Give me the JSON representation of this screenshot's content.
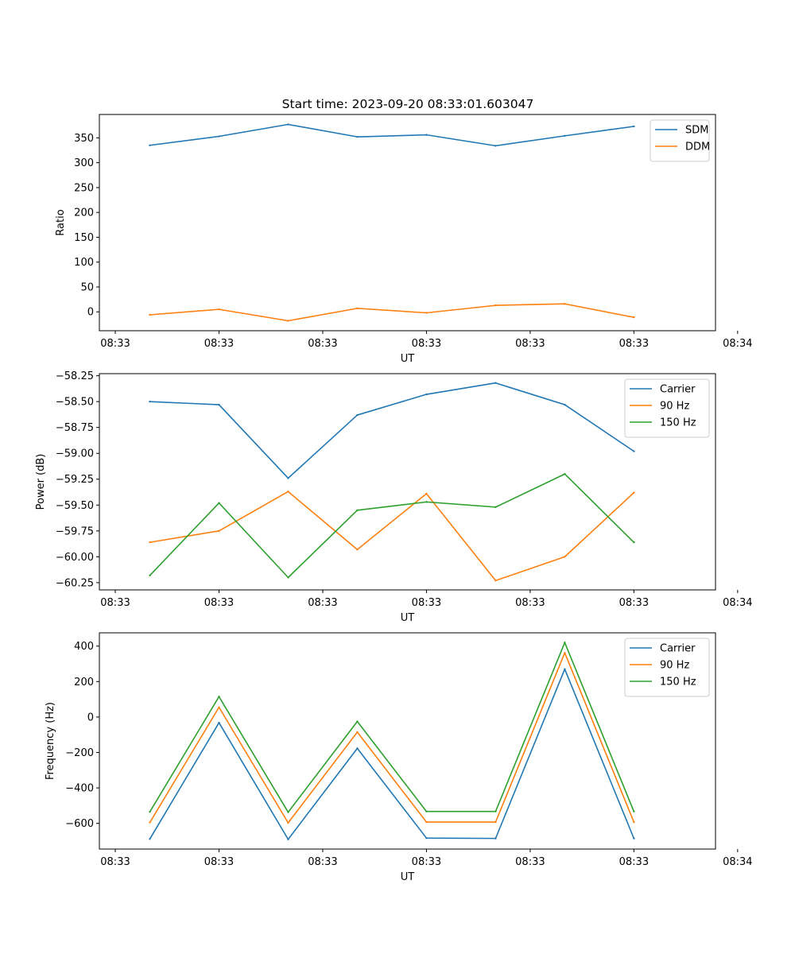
{
  "figure": {
    "title": "Start time: 2023-09-20 08:33:01.603047"
  },
  "chart_data": [
    {
      "type": "line",
      "title": "Start time: 2023-09-20 08:33:01.603047",
      "xlabel": "UT",
      "ylabel": "Ratio",
      "x": [
        1,
        2,
        3,
        4,
        5,
        6,
        7,
        8
      ],
      "xlim": [
        0.27,
        9.18
      ],
      "x_ticks": [
        0.5,
        2,
        3.5,
        5,
        6.5,
        8,
        9.5
      ],
      "x_tick_labels": [
        "08:33",
        "08:33",
        "08:33",
        "08:33",
        "08:33",
        "08:33",
        "08:34"
      ],
      "ylim": [
        -38,
        397
      ],
      "y_ticks": [
        0,
        50,
        100,
        150,
        200,
        250,
        300,
        350
      ],
      "y_tick_labels": [
        "0",
        "50",
        "100",
        "150",
        "200",
        "250",
        "300",
        "350"
      ],
      "legend_position": "top-right",
      "series": [
        {
          "name": "SDM",
          "color": "#1f77b4",
          "values": [
            335,
            353,
            377,
            352,
            356,
            334,
            354,
            373
          ]
        },
        {
          "name": "DDM",
          "color": "#ff7f0e",
          "values": [
            -6,
            5,
            -18,
            7,
            -2,
            13,
            16,
            -11
          ]
        }
      ]
    },
    {
      "type": "line",
      "title": "",
      "xlabel": "UT",
      "ylabel": "Power (dB)",
      "x": [
        1,
        2,
        3,
        4,
        5,
        6,
        7,
        8
      ],
      "xlim": [
        0.27,
        9.18
      ],
      "x_ticks": [
        0.5,
        2,
        3.5,
        5,
        6.5,
        8,
        9.5
      ],
      "x_tick_labels": [
        "08:33",
        "08:33",
        "08:33",
        "08:33",
        "08:33",
        "08:33",
        "08:34"
      ],
      "ylim": [
        -60.32,
        -58.23
      ],
      "y_ticks": [
        -58.25,
        -58.5,
        -58.75,
        -59.0,
        -59.25,
        -59.5,
        -59.75,
        -60.0,
        -60.25
      ],
      "y_tick_labels": [
        "−58.25",
        "−58.50",
        "−58.75",
        "−59.00",
        "−59.25",
        "−59.50",
        "−59.75",
        "−60.00",
        "−60.25"
      ],
      "legend_position": "top-right",
      "series": [
        {
          "name": "Carrier",
          "color": "#1f77b4",
          "values": [
            -58.5,
            -58.53,
            -59.24,
            -58.63,
            -58.43,
            -58.32,
            -58.53,
            -58.98
          ]
        },
        {
          "name": "90 Hz",
          "color": "#ff7f0e",
          "values": [
            -59.86,
            -59.75,
            -59.37,
            -59.93,
            -59.39,
            -60.23,
            -60.0,
            -59.38
          ]
        },
        {
          "name": "150 Hz",
          "color": "#2ca02c",
          "values": [
            -60.18,
            -59.48,
            -60.2,
            -59.55,
            -59.47,
            -59.52,
            -59.2,
            -59.86
          ]
        }
      ]
    },
    {
      "type": "line",
      "title": "",
      "xlabel": "UT",
      "ylabel": "Frequency (Hz)",
      "x": [
        1,
        2,
        3,
        4,
        5,
        6,
        7,
        8
      ],
      "xlim": [
        0.27,
        9.18
      ],
      "x_ticks": [
        0.5,
        2,
        3.5,
        5,
        6.5,
        8,
        9.5
      ],
      "x_tick_labels": [
        "08:33",
        "08:33",
        "08:33",
        "08:33",
        "08:33",
        "08:33",
        "08:34"
      ],
      "ylim": [
        -745,
        475
      ],
      "y_ticks": [
        -600,
        -400,
        -200,
        0,
        200,
        400
      ],
      "y_tick_labels": [
        "−600",
        "−400",
        "−200",
        "0",
        "200",
        "400"
      ],
      "legend_position": "top-right",
      "series": [
        {
          "name": "Carrier",
          "color": "#1f77b4",
          "values": [
            -688,
            -32,
            -690,
            -177,
            -683,
            -685,
            270,
            -685
          ]
        },
        {
          "name": "90 Hz",
          "color": "#ff7f0e",
          "values": [
            -595,
            55,
            -597,
            -85,
            -593,
            -593,
            362,
            -593
          ]
        },
        {
          "name": "150 Hz",
          "color": "#2ca02c",
          "values": [
            -535,
            115,
            -537,
            -25,
            -533,
            -533,
            420,
            -533
          ]
        }
      ]
    }
  ]
}
